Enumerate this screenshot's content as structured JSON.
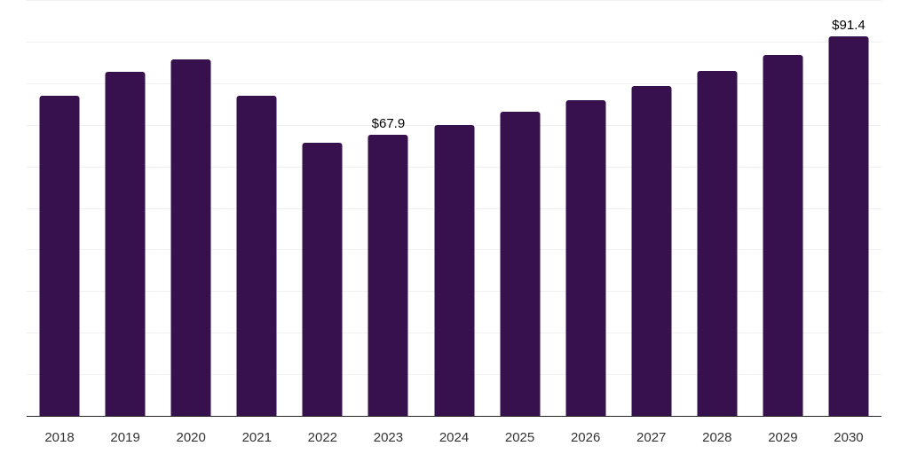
{
  "chart_data": {
    "type": "bar",
    "title": "",
    "xlabel": "",
    "ylabel": "",
    "categories": [
      "2018",
      "2019",
      "2020",
      "2021",
      "2022",
      "2023",
      "2024",
      "2025",
      "2026",
      "2027",
      "2028",
      "2029",
      "2030"
    ],
    "values": [
      77.2,
      82.9,
      85.9,
      77.2,
      65.9,
      67.9,
      70.2,
      73.4,
      76.2,
      79.5,
      83.2,
      87.1,
      91.4
    ],
    "data_labels": {
      "2023": "$67.9",
      "2030": "$91.4"
    },
    "ylim": [
      0,
      100
    ],
    "grid_step": 10,
    "grid": "horizontal-only",
    "legend": "none",
    "colors": {
      "bar_fill": "#36114e",
      "gridline": "#f0f0f0",
      "axis_line": "#262626",
      "tick_label": "#333333",
      "data_label": "#000000",
      "background": "#ffffff"
    }
  }
}
